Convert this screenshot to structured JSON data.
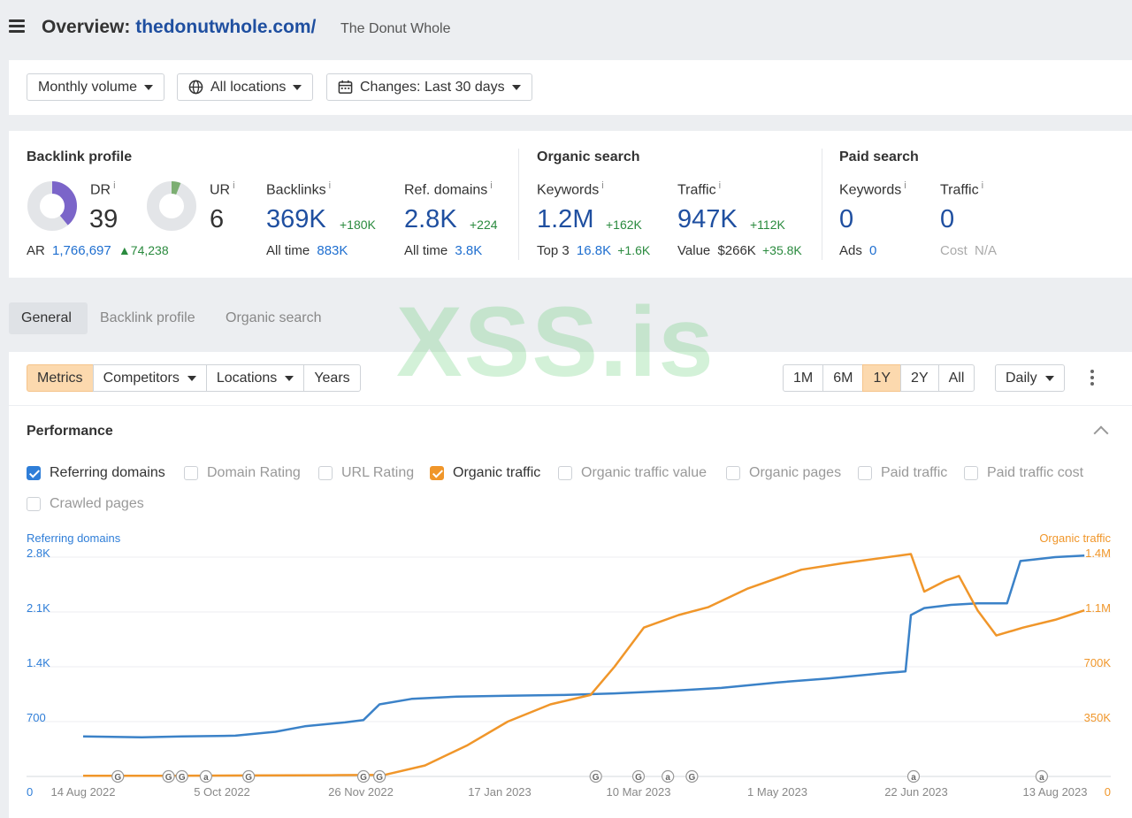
{
  "header": {
    "title_prefix": "Overview:",
    "domain": "thedonutwhole.com/",
    "subtitle": "The Donut Whole"
  },
  "filters": {
    "volume": "Monthly volume",
    "locations": "All locations",
    "changes": "Changes: Last 30 days"
  },
  "backlink_profile": {
    "title": "Backlink profile",
    "dr_label": "DR",
    "dr_value": "39",
    "dr_fill": 0.39,
    "ur_label": "UR",
    "ur_value": "6",
    "ur_fill": 0.06,
    "ar_label": "AR",
    "ar_value": "1,766,697",
    "ar_delta": "74,238",
    "backlinks_label": "Backlinks",
    "backlinks_value": "369K",
    "backlinks_delta": "+180K",
    "backlinks_alltime_label": "All time",
    "backlinks_alltime": "883K",
    "refdomains_label": "Ref. domains",
    "refdomains_value": "2.8K",
    "refdomains_delta": "+224",
    "refdomains_alltime_label": "All time",
    "refdomains_alltime": "3.8K"
  },
  "organic_search": {
    "title": "Organic search",
    "keywords_label": "Keywords",
    "keywords_value": "1.2M",
    "keywords_delta": "+162K",
    "top3_label": "Top 3",
    "top3_value": "16.8K",
    "top3_delta": "+1.6K",
    "traffic_label": "Traffic",
    "traffic_value": "947K",
    "traffic_delta": "+112K",
    "value_label": "Value",
    "value_value": "$266K",
    "value_delta": "+35.8K"
  },
  "paid_search": {
    "title": "Paid search",
    "keywords_label": "Keywords",
    "keywords_value": "0",
    "ads_label": "Ads",
    "ads_value": "0",
    "traffic_label": "Traffic",
    "traffic_value": "0",
    "cost_label": "Cost",
    "cost_value": "N/A"
  },
  "tabs": [
    "General",
    "Backlink profile",
    "Organic search"
  ],
  "watermark": "XSS.is",
  "toolbar": {
    "metrics": "Metrics",
    "competitors": "Competitors",
    "locations": "Locations",
    "years": "Years",
    "ranges": [
      "1M",
      "6M",
      "1Y",
      "2Y",
      "All"
    ],
    "active_range": "1Y",
    "granularity": "Daily"
  },
  "performance": {
    "title": "Performance",
    "checkboxes": [
      {
        "label": "Referring domains",
        "checked": true,
        "color": "#2f7ed8"
      },
      {
        "label": "Domain Rating",
        "checked": false
      },
      {
        "label": "URL Rating",
        "checked": false
      },
      {
        "label": "Organic traffic",
        "checked": true,
        "color": "#f0962a"
      },
      {
        "label": "Organic traffic value",
        "checked": false
      },
      {
        "label": "Organic pages",
        "checked": false
      },
      {
        "label": "Paid traffic",
        "checked": false
      },
      {
        "label": "Paid traffic cost",
        "checked": false
      },
      {
        "label": "Crawled pages",
        "checked": false
      }
    ]
  },
  "chart_data": {
    "type": "line",
    "left_axis_label": "Referring domains",
    "right_axis_label": "Organic traffic",
    "left_ticks": [
      "0",
      "700",
      "1.4K",
      "2.1K",
      "2.8K"
    ],
    "right_ticks": [
      "0",
      "350K",
      "700K",
      "1.1M",
      "1.4M"
    ],
    "left_ylim": [
      0,
      2800
    ],
    "right_ylim": [
      0,
      1400000
    ],
    "x_tick_labels": [
      "14 Aug 2022",
      "5 Oct 2022",
      "26 Nov 2022",
      "17 Jan 2023",
      "10 Mar 2023",
      "1 May 2023",
      "22 Jun 2023",
      "13 Aug 2023"
    ],
    "xlim": [
      "2022-08-14",
      "2023-08-13"
    ],
    "grid": true,
    "series": [
      {
        "name": "Referring domains",
        "axis": "left",
        "color": "#3b82c8",
        "points": [
          [
            "2022-08-14",
            510
          ],
          [
            "2022-09-05",
            500
          ],
          [
            "2022-09-20",
            510
          ],
          [
            "2022-10-10",
            520
          ],
          [
            "2022-10-25",
            570
          ],
          [
            "2022-11-05",
            640
          ],
          [
            "2022-11-20",
            690
          ],
          [
            "2022-11-27",
            720
          ],
          [
            "2022-12-03",
            920
          ],
          [
            "2022-12-15",
            990
          ],
          [
            "2023-01-01",
            1020
          ],
          [
            "2023-01-20",
            1030
          ],
          [
            "2023-02-10",
            1040
          ],
          [
            "2023-03-01",
            1060
          ],
          [
            "2023-03-20",
            1090
          ],
          [
            "2023-04-10",
            1130
          ],
          [
            "2023-05-01",
            1200
          ],
          [
            "2023-05-20",
            1250
          ],
          [
            "2023-06-10",
            1320
          ],
          [
            "2023-06-18",
            1340
          ],
          [
            "2023-06-20",
            2060
          ],
          [
            "2023-06-25",
            2150
          ],
          [
            "2023-07-05",
            2190
          ],
          [
            "2023-07-15",
            2210
          ],
          [
            "2023-07-26",
            2210
          ],
          [
            "2023-07-31",
            2750
          ],
          [
            "2023-08-05",
            2770
          ],
          [
            "2023-08-13",
            2800
          ],
          [
            "2023-08-24",
            2820
          ]
        ]
      },
      {
        "name": "Organic traffic",
        "axis": "right",
        "color": "#f0962a",
        "points": [
          [
            "2022-08-14",
            4000
          ],
          [
            "2022-09-15",
            4000
          ],
          [
            "2022-10-15",
            6000
          ],
          [
            "2022-11-15",
            8000
          ],
          [
            "2022-12-05",
            10000
          ],
          [
            "2022-12-20",
            70000
          ],
          [
            "2023-01-05",
            200000
          ],
          [
            "2023-01-20",
            350000
          ],
          [
            "2023-02-05",
            460000
          ],
          [
            "2023-02-20",
            520000
          ],
          [
            "2023-03-01",
            700000
          ],
          [
            "2023-03-12",
            950000
          ],
          [
            "2023-03-25",
            1030000
          ],
          [
            "2023-04-05",
            1080000
          ],
          [
            "2023-04-20",
            1200000
          ],
          [
            "2023-05-10",
            1320000
          ],
          [
            "2023-05-25",
            1360000
          ],
          [
            "2023-06-20",
            1420000
          ],
          [
            "2023-06-25",
            1180000
          ],
          [
            "2023-07-03",
            1250000
          ],
          [
            "2023-07-08",
            1280000
          ],
          [
            "2023-07-15",
            1060000
          ],
          [
            "2023-07-22",
            900000
          ],
          [
            "2023-08-01",
            950000
          ],
          [
            "2023-08-13",
            1000000
          ],
          [
            "2023-08-24",
            1060000
          ]
        ]
      }
    ],
    "markers": [
      {
        "date": "2022-08-27",
        "label": "G"
      },
      {
        "date": "2022-09-15",
        "label": "G"
      },
      {
        "date": "2022-09-20",
        "label": "G"
      },
      {
        "date": "2022-09-29",
        "label": "a"
      },
      {
        "date": "2022-10-15",
        "label": "G"
      },
      {
        "date": "2022-11-27",
        "label": "G"
      },
      {
        "date": "2022-12-03",
        "label": "G"
      },
      {
        "date": "2023-02-22",
        "label": "G"
      },
      {
        "date": "2023-03-10",
        "label": "G"
      },
      {
        "date": "2023-03-21",
        "label": "a"
      },
      {
        "date": "2023-03-30",
        "label": "G"
      },
      {
        "date": "2023-06-21",
        "label": "a"
      },
      {
        "date": "2023-08-08",
        "label": "a"
      }
    ]
  }
}
